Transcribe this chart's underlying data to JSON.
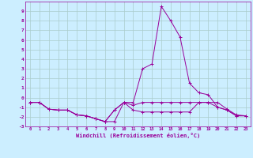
{
  "x": [
    0,
    1,
    2,
    3,
    4,
    5,
    6,
    7,
    8,
    9,
    10,
    11,
    12,
    13,
    14,
    15,
    16,
    17,
    18,
    19,
    20,
    21,
    22,
    23
  ],
  "line1": [
    -0.5,
    -0.5,
    -1.2,
    -1.3,
    -1.3,
    -1.8,
    -1.9,
    -2.2,
    -2.5,
    -1.3,
    -0.5,
    -0.8,
    -0.5,
    -0.5,
    -0.5,
    -0.5,
    -0.5,
    -0.5,
    -0.5,
    -0.5,
    -0.5,
    -1.2,
    -1.8,
    -1.9
  ],
  "line2": [
    -0.5,
    -0.5,
    -1.2,
    -1.3,
    -1.3,
    -1.8,
    -1.9,
    -2.2,
    -2.5,
    -1.3,
    -0.5,
    -1.3,
    -1.5,
    -1.5,
    -1.5,
    -1.5,
    -1.5,
    -1.5,
    -0.5,
    -0.5,
    -1.0,
    -1.3,
    -1.9,
    -1.9
  ],
  "line3": [
    -0.5,
    -0.5,
    -1.2,
    -1.3,
    -1.3,
    -1.8,
    -1.9,
    -2.2,
    -2.5,
    -2.5,
    -0.5,
    -0.5,
    3.0,
    3.5,
    9.5,
    8.0,
    6.3,
    1.5,
    0.5,
    0.3,
    -1.0,
    -1.3,
    -1.9,
    -1.9
  ],
  "ylim": [
    -3,
    10
  ],
  "xlim": [
    -0.5,
    23.5
  ],
  "yticks": [
    -3,
    -2,
    -1,
    0,
    1,
    2,
    3,
    4,
    5,
    6,
    7,
    8,
    9
  ],
  "xticks": [
    0,
    1,
    2,
    3,
    4,
    5,
    6,
    7,
    8,
    9,
    10,
    11,
    12,
    13,
    14,
    15,
    16,
    17,
    18,
    19,
    20,
    21,
    22,
    23
  ],
  "xlabel": "Windchill (Refroidissement éolien,°C)",
  "line_color": "#990099",
  "bg_color": "#cceeff",
  "grid_color": "#aacccc"
}
